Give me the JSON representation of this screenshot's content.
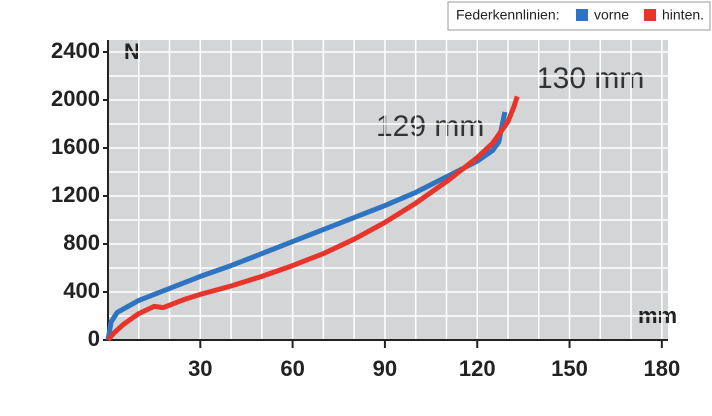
{
  "chart_data": {
    "type": "line",
    "legend_title": "Federkennlinien:",
    "y_label": "N",
    "x_label": "mm",
    "annotations": [
      "129 mm",
      "130 mm"
    ],
    "xlim": [
      0,
      182
    ],
    "ylim": [
      0,
      2500
    ],
    "xticks": [
      30,
      60,
      90,
      120,
      150,
      180
    ],
    "yticks": [
      0,
      400,
      800,
      1200,
      1600,
      2000,
      2400
    ],
    "grid": true,
    "x_grid_step": 10,
    "y_grid_step": 200,
    "series": [
      {
        "name": "vorne",
        "color": "#2f74c0",
        "x": [
          0,
          1,
          3,
          10,
          20,
          30,
          40,
          50,
          60,
          70,
          80,
          90,
          100,
          110,
          120,
          125,
          127,
          128,
          129
        ],
        "values": [
          0,
          150,
          230,
          330,
          430,
          530,
          620,
          720,
          820,
          920,
          1020,
          1120,
          1230,
          1360,
          1490,
          1580,
          1650,
          1780,
          1900
        ]
      },
      {
        "name": "hinten.",
        "color": "#e8352b",
        "x": [
          0,
          2,
          5,
          10,
          15,
          18,
          25,
          30,
          40,
          50,
          60,
          70,
          80,
          90,
          100,
          110,
          120,
          125,
          130,
          132,
          133
        ],
        "values": [
          0,
          60,
          130,
          220,
          280,
          270,
          340,
          380,
          450,
          530,
          620,
          720,
          840,
          980,
          1140,
          1320,
          1520,
          1640,
          1820,
          1950,
          2030
        ]
      }
    ]
  }
}
